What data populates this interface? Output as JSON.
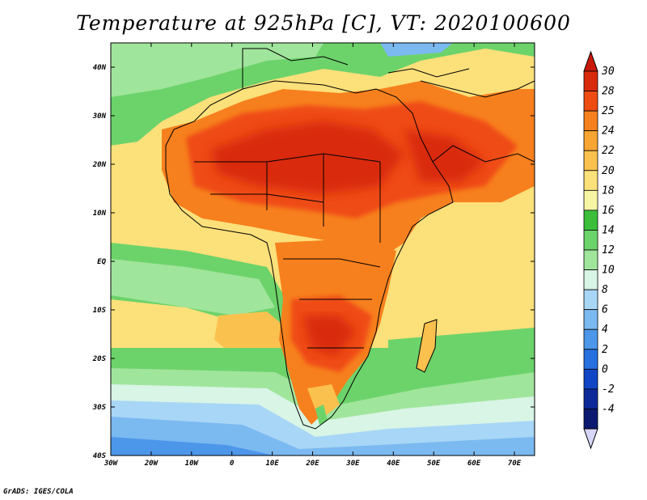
{
  "title": "Temperature at 925hPa [C], VT: 2020100600",
  "credit": "GrADS: IGES/COLA",
  "map": {
    "lon_range": [
      -30,
      75
    ],
    "lat_range": [
      -40,
      45
    ],
    "lat_ticks": [
      {
        "value": 40,
        "label": "40N"
      },
      {
        "value": 30,
        "label": "30N"
      },
      {
        "value": 20,
        "label": "20N"
      },
      {
        "value": 10,
        "label": "10N"
      },
      {
        "value": 0,
        "label": "EQ"
      },
      {
        "value": -10,
        "label": "10S"
      },
      {
        "value": -20,
        "label": "20S"
      },
      {
        "value": -30,
        "label": "30S"
      },
      {
        "value": -40,
        "label": "40S"
      }
    ],
    "lon_ticks": [
      {
        "value": -30,
        "label": "30W"
      },
      {
        "value": -20,
        "label": "20W"
      },
      {
        "value": -10,
        "label": "10W"
      },
      {
        "value": 0,
        "label": "0"
      },
      {
        "value": 10,
        "label": "10E"
      },
      {
        "value": 20,
        "label": "20E"
      },
      {
        "value": 30,
        "label": "30E"
      },
      {
        "value": 40,
        "label": "40E"
      },
      {
        "value": 50,
        "label": "50E"
      },
      {
        "value": 60,
        "label": "60E"
      },
      {
        "value": 70,
        "label": "70E"
      }
    ]
  },
  "colorbar": {
    "levels": [
      {
        "label": "30",
        "color": "#d92a0c"
      },
      {
        "label": "28",
        "color": "#ef4c12"
      },
      {
        "label": "25",
        "color": "#f7801e"
      },
      {
        "label": "24",
        "color": "#f9a534"
      },
      {
        "label": "22",
        "color": "#fbc14e"
      },
      {
        "label": "20",
        "color": "#fce07a"
      },
      {
        "label": "18",
        "color": "#f6f5a4"
      },
      {
        "label": "16",
        "color": "#3bbf3b"
      },
      {
        "label": "14",
        "color": "#6cd36a"
      },
      {
        "label": "12",
        "color": "#a0e59c"
      },
      {
        "label": "10",
        "color": "#d8f5e6"
      },
      {
        "label": "8",
        "color": "#a8d6f6"
      },
      {
        "label": "6",
        "color": "#7bb9f1"
      },
      {
        "label": "4",
        "color": "#4d97ea"
      },
      {
        "label": "2",
        "color": "#2670e0"
      },
      {
        "label": "0",
        "color": "#1046c6"
      },
      {
        "label": "-2",
        "color": "#0c2a9a"
      },
      {
        "label": "-4",
        "color": "#0b1a70"
      }
    ],
    "top_triangle_color": "#c8190a",
    "bottom_triangle_color": "#d6d6f8"
  }
}
